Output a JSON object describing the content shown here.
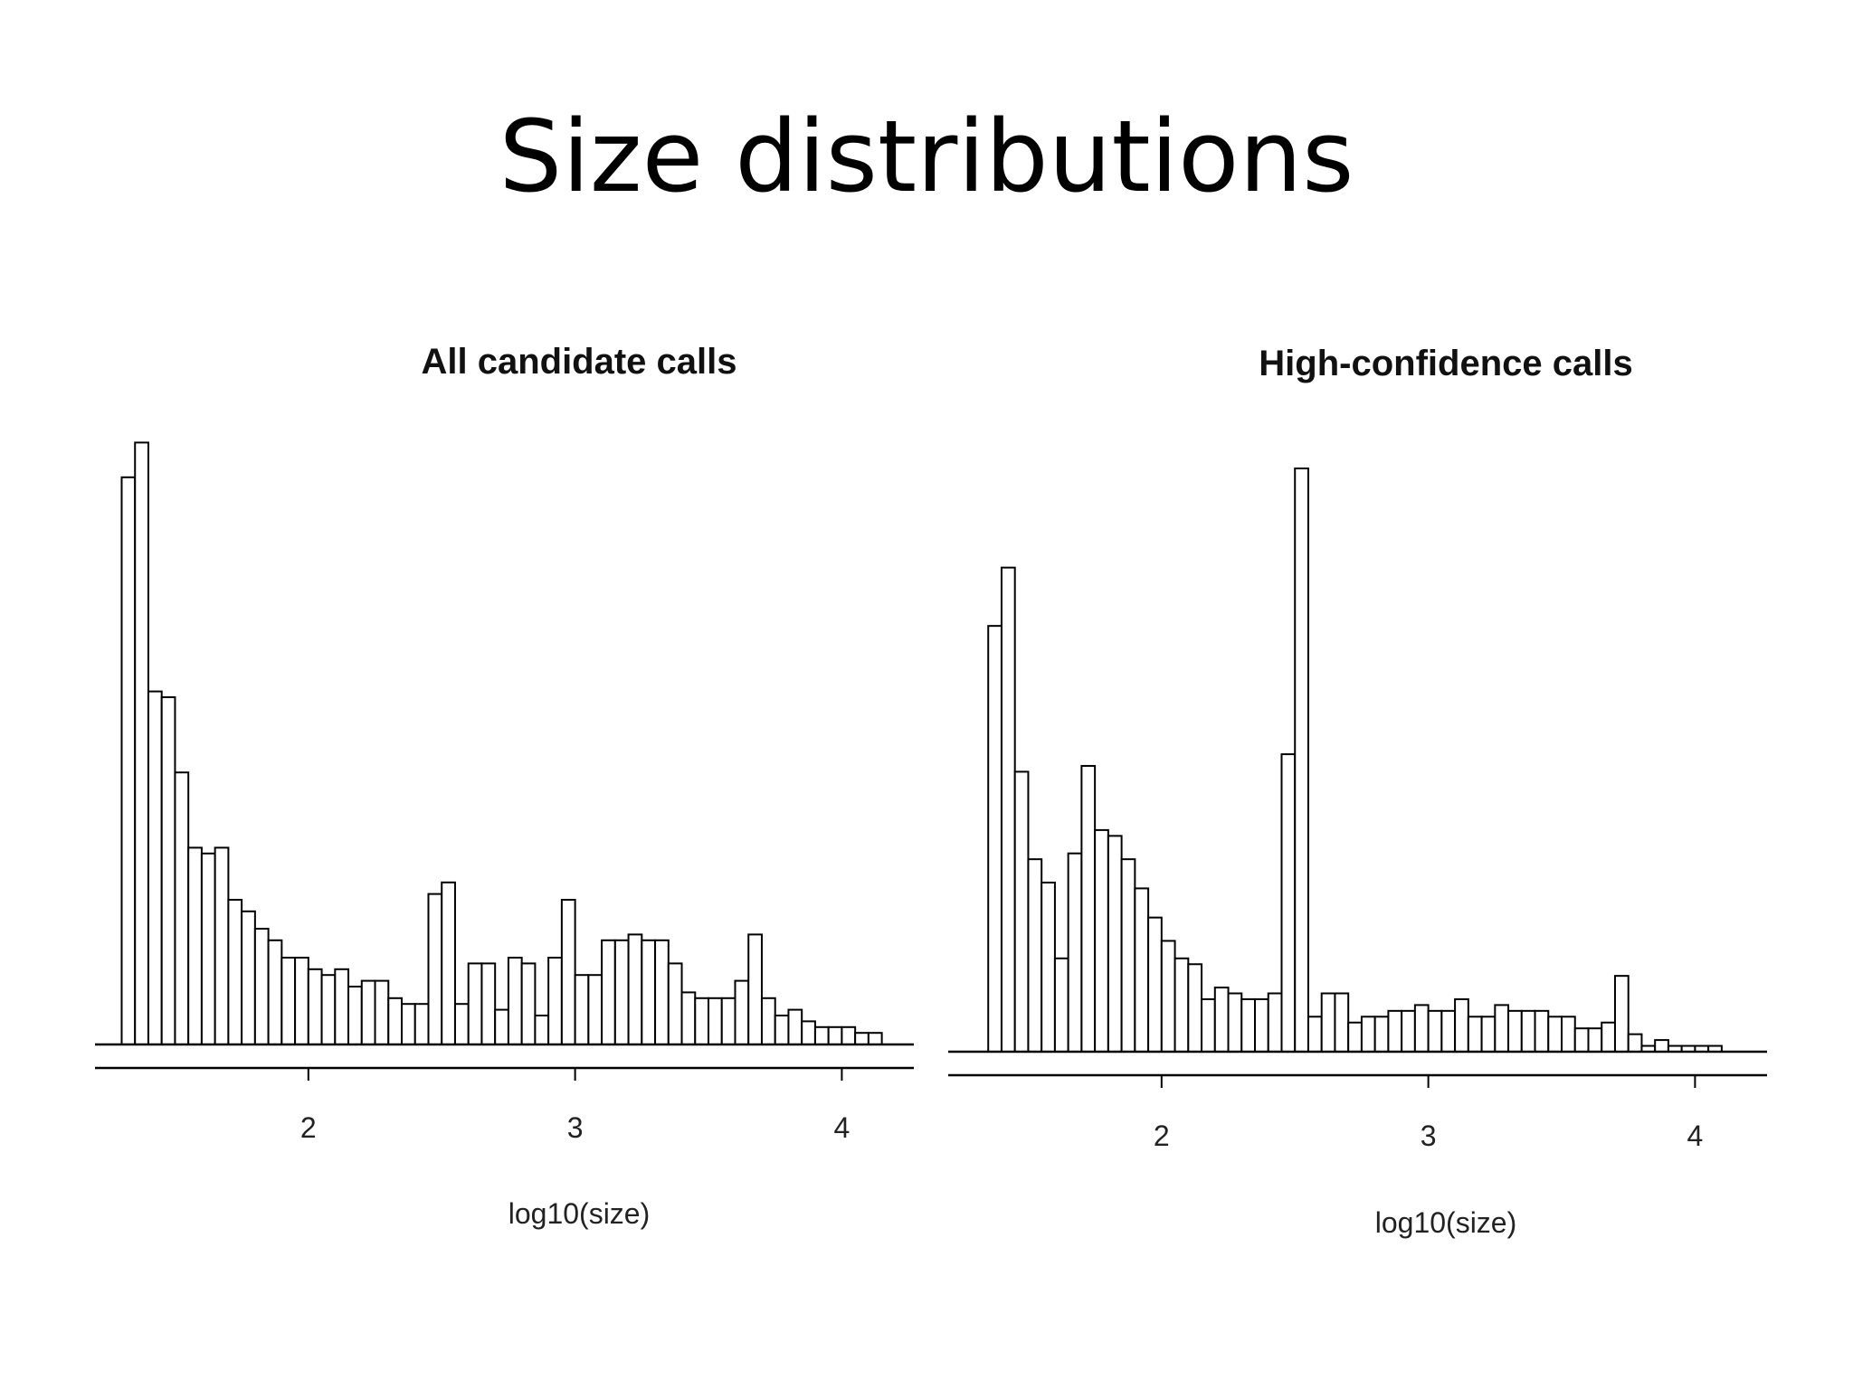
{
  "slide": {
    "title": "Size distributions"
  },
  "chart_data": [
    {
      "type": "bar",
      "title": "All candidate calls",
      "xlabel": "log10(size)",
      "ylabel": "",
      "xlim": [
        1.2,
        4.27
      ],
      "ylim": [
        0,
        100
      ],
      "xticks": [
        2,
        3,
        4
      ],
      "bin_start": 1.3,
      "bin_width": 0.05,
      "values": [
        98,
        104,
        61,
        60,
        47,
        34,
        33,
        34,
        25,
        23,
        20,
        18,
        15,
        15,
        13,
        12,
        13,
        10,
        11,
        11,
        8,
        7,
        7,
        26,
        28,
        7,
        14,
        14,
        6,
        15,
        14,
        5,
        15,
        25,
        12,
        12,
        18,
        18,
        19,
        18,
        18,
        14,
        9,
        8,
        8,
        8,
        11,
        19,
        8,
        5,
        6,
        4,
        3,
        3,
        3,
        2,
        2
      ]
    },
    {
      "type": "bar",
      "title": "High-confidence calls",
      "xlabel": "log10(size)",
      "ylabel": "",
      "xlim": [
        1.2,
        4.27
      ],
      "ylim": [
        0,
        100
      ],
      "xticks": [
        2,
        3,
        4
      ],
      "bin_start": 1.35,
      "bin_width": 0.05,
      "values": [
        73,
        83,
        48,
        33,
        29,
        16,
        34,
        49,
        38,
        37,
        33,
        28,
        23,
        19,
        16,
        15,
        9,
        11,
        10,
        9,
        9,
        10,
        51,
        100,
        6,
        10,
        10,
        5,
        6,
        6,
        7,
        7,
        8,
        7,
        7,
        9,
        6,
        6,
        8,
        7,
        7,
        7,
        6,
        6,
        4,
        4,
        5,
        13,
        3,
        1,
        2,
        1,
        1,
        1,
        1
      ]
    }
  ]
}
